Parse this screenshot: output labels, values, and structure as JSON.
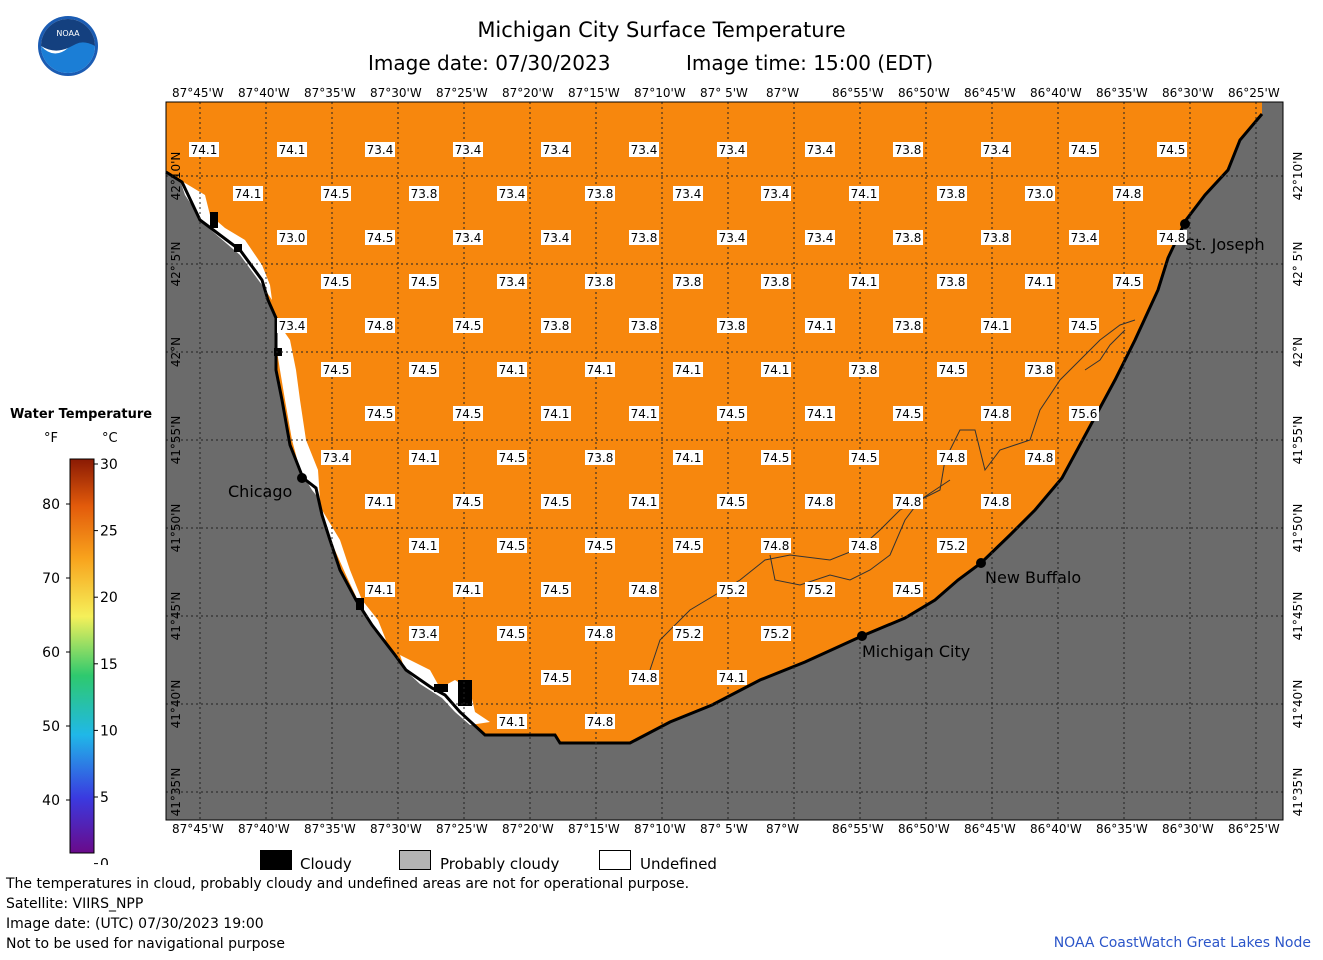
{
  "header": {
    "title": "Michigan City Surface Temperature",
    "image_date": "Image date: 07/30/2023",
    "image_time": "Image time: 15:00 (EDT)",
    "logo_text": "NOAA"
  },
  "map": {
    "lon_labels": [
      "87°45'W",
      "87°40'W",
      "87°35'W",
      "87°30'W",
      "87°25'W",
      "87°20'W",
      "87°15'W",
      "87°10'W",
      "87° 5'W",
      "87°W",
      "86°55'W",
      "86°50'W",
      "86°45'W",
      "86°40'W",
      "86°35'W",
      "86°30'W",
      "86°25'W"
    ],
    "lat_labels": [
      "42°10'N",
      "42° 5'N",
      "42°N",
      "41°55'N",
      "41°50'N",
      "41°45'N",
      "41°40'N",
      "41°35'N"
    ],
    "cities": [
      {
        "name": "Chicago",
        "lon": -87.63,
        "lat": 41.855
      },
      {
        "name": "St. Joseph",
        "lon": -86.495,
        "lat": 42.11
      },
      {
        "name": "New Buffalo",
        "lon": -86.74,
        "lat": 41.795
      },
      {
        "name": "Michigan City",
        "lon": -86.905,
        "lat": 41.71
      }
    ],
    "colors": {
      "water": "#f7870d",
      "land": "#6b6b6b",
      "cloudy": "#000000",
      "probably_cloudy": "#b4b4b4",
      "undefined": "#ffffff"
    }
  },
  "temperature_rows": [
    [
      "74.1",
      "74.1",
      "73.4",
      "73.4",
      "73.4",
      "73.4",
      "73.4",
      "73.4",
      "73.8",
      "73.4",
      "74.5",
      "74.5"
    ],
    [
      "74.1",
      "74.5",
      "73.8",
      "73.4",
      "73.8",
      "73.4",
      "73.4",
      "74.1",
      "73.8",
      "73.0",
      "74.8"
    ],
    [
      "73.0",
      "74.5",
      "73.4",
      "73.4",
      "73.8",
      "73.4",
      "73.4",
      "73.8",
      "73.8",
      "73.4",
      "74.8"
    ],
    [
      "74.5",
      "74.5",
      "73.4",
      "73.8",
      "73.8",
      "73.8",
      "74.1",
      "73.8",
      "74.1",
      "74.5"
    ],
    [
      "73.4",
      "74.8",
      "74.5",
      "73.8",
      "73.8",
      "73.8",
      "74.1",
      "73.8",
      "74.1",
      "74.5"
    ],
    [
      "74.5",
      "74.5",
      "74.1",
      "74.1",
      "74.1",
      "74.1",
      "73.8",
      "74.5",
      "73.8"
    ],
    [
      "74.5",
      "74.5",
      "74.1",
      "74.1",
      "74.5",
      "74.1",
      "74.5",
      "74.8",
      "75.6"
    ],
    [
      "73.4",
      "74.1",
      "74.5",
      "73.8",
      "74.1",
      "74.5",
      "74.5",
      "74.8",
      "74.8"
    ],
    [
      "74.1",
      "74.5",
      "74.5",
      "74.1",
      "74.5",
      "74.8",
      "74.8",
      "74.8"
    ],
    [
      "74.1",
      "74.5",
      "74.5",
      "74.5",
      "74.8",
      "74.8",
      "75.2"
    ],
    [
      "74.1",
      "74.1",
      "74.5",
      "74.8",
      "75.2",
      "75.2",
      "74.5"
    ],
    [
      "73.4",
      "74.5",
      "74.8",
      "75.2",
      "75.2"
    ],
    [
      "74.5",
      "74.8",
      "74.1"
    ],
    [
      "74.1",
      "74.8"
    ]
  ],
  "legend": {
    "title": "Water Temperature",
    "unit_f": "°F",
    "unit_c": "°C",
    "f_ticks": [
      "80",
      "70",
      "60",
      "50",
      "40"
    ],
    "c_ticks": [
      "30",
      "25",
      "20",
      "15",
      "10",
      "5",
      "0"
    ]
  },
  "key": {
    "cloudy": "Cloudy",
    "probably_cloudy": "Probably cloudy",
    "undefined": "Undefined"
  },
  "footer": {
    "note": "The temperatures in cloud, probably cloudy and undefined areas are not for operational purpose.",
    "satellite": "Satellite: VIIRS_NPP",
    "utc_date": "Image date: (UTC) 07/30/2023  19:00",
    "nav": "Not to be used for navigational purpose",
    "credit": "NOAA CoastWatch Great Lakes Node"
  }
}
